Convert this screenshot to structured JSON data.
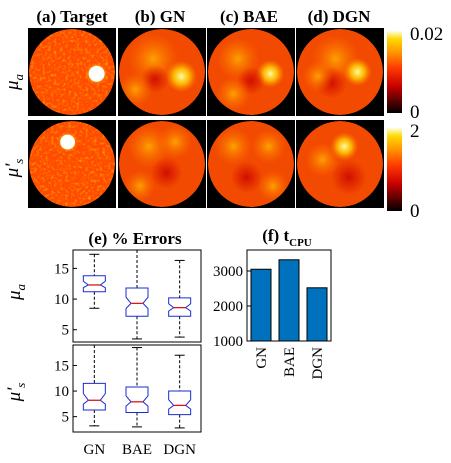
{
  "panels": [
    {
      "title": "(a) Target"
    },
    {
      "title": "(b) GN"
    },
    {
      "title": "(c) BAE"
    },
    {
      "title": "(d) DGN"
    }
  ],
  "rows": [
    {
      "symbol": "μ",
      "subscript": "a"
    },
    {
      "symbol": "μ'",
      "subscript": "s"
    }
  ],
  "colorbars": [
    {
      "max_label": "0.02",
      "min_label": "0",
      "max": 0.02,
      "min": 0
    },
    {
      "max_label": "2",
      "min_label": "0",
      "max": 2,
      "min": 0
    }
  ],
  "colors": {
    "box_outline": "#1a2bd6",
    "median": "#e0141e",
    "bar_fill": "#0072bd",
    "colormap": "hot"
  },
  "chart_data": [
    {
      "type": "boxplot",
      "title": "(e) % Errors",
      "categories": [
        "GN",
        "BAE",
        "DGN"
      ],
      "subplots": [
        {
          "ylabel_symbol": "μ",
          "ylabel_sub": "a",
          "ylim": [
            3,
            18
          ],
          "yticks": [
            5,
            10,
            15
          ],
          "boxes": [
            {
              "whisker_low": 8.5,
              "q1": 11.2,
              "median": 12.3,
              "q3": 13.8,
              "whisker_high": 17.3
            },
            {
              "whisker_low": 3.5,
              "q1": 7.2,
              "median": 9.3,
              "q3": 11.8,
              "whisker_high": 18.0
            },
            {
              "whisker_low": 3.8,
              "q1": 7.2,
              "median": 8.6,
              "q3": 10.2,
              "whisker_high": 16.3
            }
          ]
        },
        {
          "ylabel_symbol": "μ'",
          "ylabel_sub": "s",
          "ylim": [
            2,
            19
          ],
          "yticks": [
            5,
            10,
            15
          ],
          "boxes": [
            {
              "whisker_low": 3.2,
              "q1": 6.3,
              "median": 8.2,
              "q3": 11.5,
              "whisker_high": 19.0
            },
            {
              "whisker_low": 3.0,
              "q1": 5.8,
              "median": 7.9,
              "q3": 10.8,
              "whisker_high": 18.5
            },
            {
              "whisker_low": 2.8,
              "q1": 5.4,
              "median": 7.2,
              "q3": 10.0,
              "whisker_high": 17.0
            }
          ]
        }
      ]
    },
    {
      "type": "bar",
      "title_main": "(f) t",
      "title_sub": "CPU",
      "categories": [
        "GN",
        "BAE",
        "DGN"
      ],
      "values": [
        3050,
        3320,
        2520
      ],
      "ylim": [
        1000,
        3600
      ],
      "yticks": [
        1000,
        2000,
        3000
      ],
      "ytick_labels": [
        "1000",
        "2000",
        "3000"
      ]
    }
  ]
}
